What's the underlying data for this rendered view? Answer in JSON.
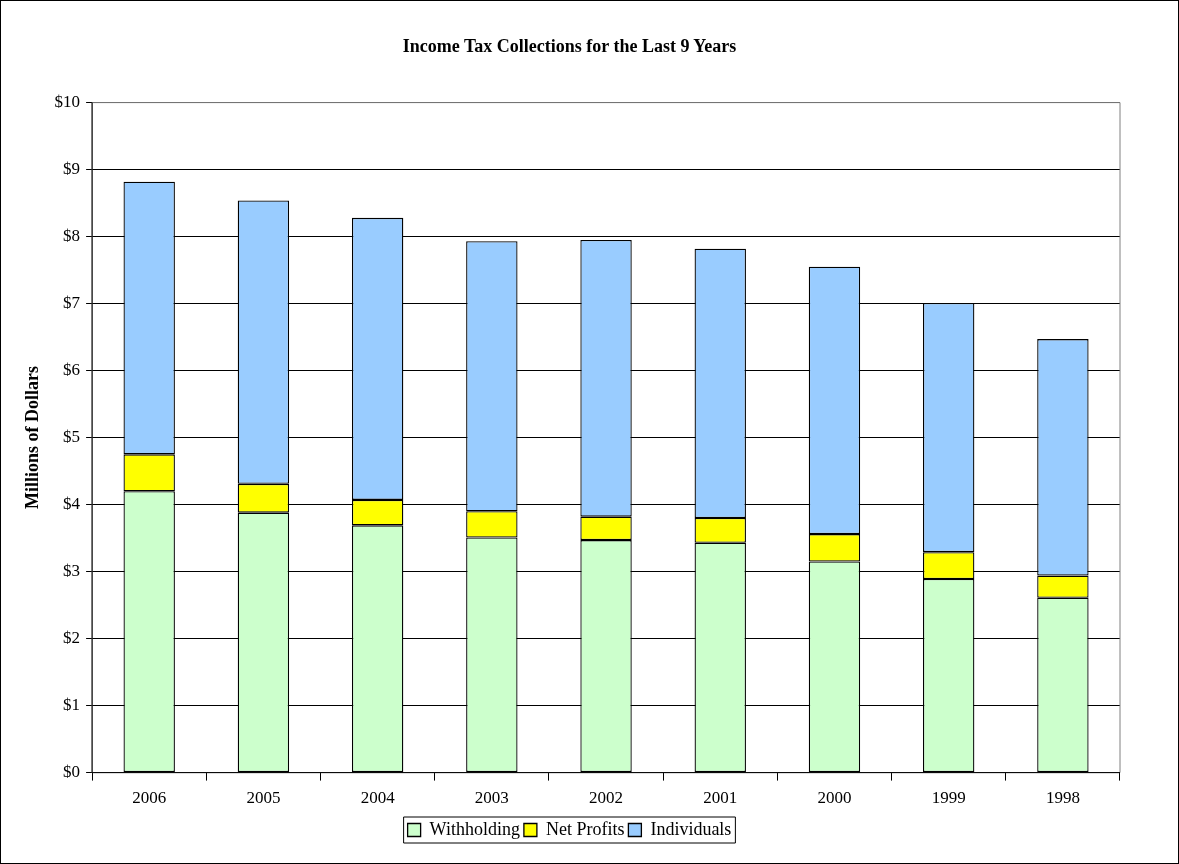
{
  "chart_data": {
    "type": "bar",
    "title": "Income Tax Collections for the Last 9 Years",
    "ylabel": "Millions of Dollars",
    "categories": [
      "2006",
      "2005",
      "2004",
      "2003",
      "2002",
      "2001",
      "2000",
      "1999",
      "1998"
    ],
    "stacked": true,
    "series": [
      {
        "name": "Withholding",
        "color": "#ccffcc",
        "values": [
          4.2,
          3.88,
          3.69,
          3.51,
          3.47,
          3.43,
          3.15,
          2.89,
          2.61
        ]
      },
      {
        "name": "Net Profits",
        "color": "#ffff00",
        "values": [
          0.55,
          0.43,
          0.38,
          0.39,
          0.35,
          0.37,
          0.41,
          0.4,
          0.33
        ]
      },
      {
        "name": "Individuals",
        "color": "#99ccff",
        "values": [
          4.07,
          4.23,
          4.21,
          4.03,
          4.13,
          4.02,
          3.99,
          3.72,
          3.53
        ]
      }
    ],
    "ylim": [
      0,
      10
    ],
    "yticks": [
      {
        "value": 0,
        "label": "$0"
      },
      {
        "value": 1,
        "label": "$1"
      },
      {
        "value": 2,
        "label": "$2"
      },
      {
        "value": 3,
        "label": "$3"
      },
      {
        "value": 4,
        "label": "$4"
      },
      {
        "value": 5,
        "label": "$5"
      },
      {
        "value": 6,
        "label": "$6"
      },
      {
        "value": 7,
        "label": "$7"
      },
      {
        "value": 8,
        "label": "$8"
      },
      {
        "value": 9,
        "label": "$9"
      },
      {
        "value": 10,
        "label": "$10"
      }
    ],
    "grid": "y",
    "legend": "bottom"
  }
}
